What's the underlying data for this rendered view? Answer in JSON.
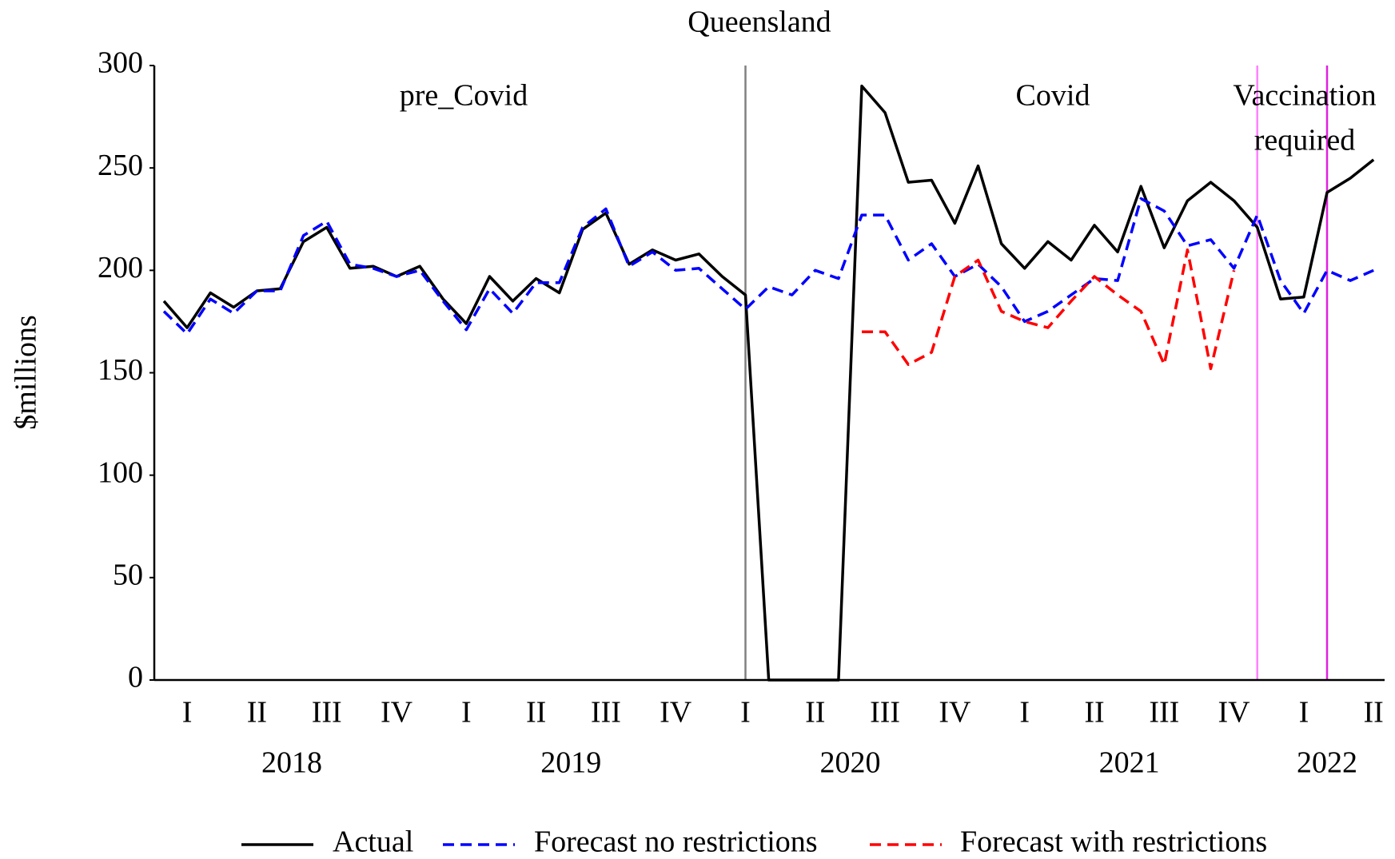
{
  "chart_data": {
    "type": "line",
    "title": "Queensland",
    "ylabel": "$millions",
    "categories": [
      null,
      "I",
      null,
      null,
      "II",
      null,
      null,
      "III",
      null,
      null,
      "IV",
      null,
      null,
      "I",
      null,
      null,
      "II",
      null,
      null,
      "III",
      null,
      null,
      "IV",
      null,
      null,
      "I",
      null,
      null,
      "II",
      null,
      null,
      "III",
      null,
      null,
      "IV",
      null,
      null,
      "I",
      null,
      null,
      "II",
      null,
      null,
      "III",
      null,
      null,
      "IV",
      null,
      null,
      "I",
      null,
      null,
      "II"
    ],
    "year_labels": [
      "2018",
      "2019",
      "2020",
      "2021",
      "2022"
    ],
    "ylim": [
      0,
      300
    ],
    "yticks": [
      0,
      50,
      100,
      150,
      200,
      250,
      300
    ],
    "grid": false,
    "legend": "bottom",
    "series": [
      {
        "name": "Actual",
        "color": "#000000",
        "dash": "solid",
        "values": [
          185,
          172,
          189,
          182,
          190,
          191,
          214,
          221,
          201,
          202,
          197,
          202,
          186,
          174,
          197,
          185,
          196,
          189,
          220,
          228,
          203,
          210,
          205,
          208,
          197,
          188,
          0,
          0,
          0,
          0,
          290,
          277,
          243,
          244,
          223,
          251,
          213,
          201,
          214,
          205,
          222,
          209,
          241,
          211,
          234,
          243,
          234,
          221,
          186,
          187,
          238,
          245,
          254
        ]
      },
      {
        "name": "Forecast no restrictions",
        "color": "#0000ff",
        "dash": "dashed",
        "values": [
          180,
          169,
          186,
          179,
          190,
          190,
          217,
          224,
          203,
          201,
          197,
          200,
          185,
          171,
          191,
          179,
          194,
          194,
          221,
          230,
          202,
          209,
          200,
          201,
          191,
          181,
          192,
          188,
          200,
          196,
          227,
          227,
          205,
          213,
          197,
          203,
          192,
          175,
          180,
          188,
          196,
          195,
          235,
          229,
          212,
          215,
          201,
          227,
          195,
          179,
          200,
          195,
          200
        ]
      },
      {
        "name": "Forecast with restrictions",
        "color": "#ff0000",
        "dash": "dashed",
        "values": [
          null,
          null,
          null,
          null,
          null,
          null,
          null,
          null,
          null,
          null,
          null,
          null,
          null,
          null,
          null,
          null,
          null,
          null,
          null,
          null,
          null,
          null,
          null,
          null,
          null,
          null,
          null,
          null,
          null,
          null,
          170,
          170,
          154,
          160,
          197,
          205,
          180,
          175,
          172,
          185,
          197,
          188,
          180,
          154,
          210,
          152,
          200,
          null,
          null,
          null,
          null,
          null,
          null
        ]
      }
    ],
    "vlines": [
      {
        "x": 25,
        "color": "#808080"
      },
      {
        "x": 47,
        "color": "#ff80ff"
      },
      {
        "x": 50,
        "color": "#e020e0"
      }
    ],
    "annotations": [
      [
        "pre_Covid"
      ],
      [
        "Covid"
      ],
      [
        "Vaccination",
        "required"
      ]
    ]
  }
}
